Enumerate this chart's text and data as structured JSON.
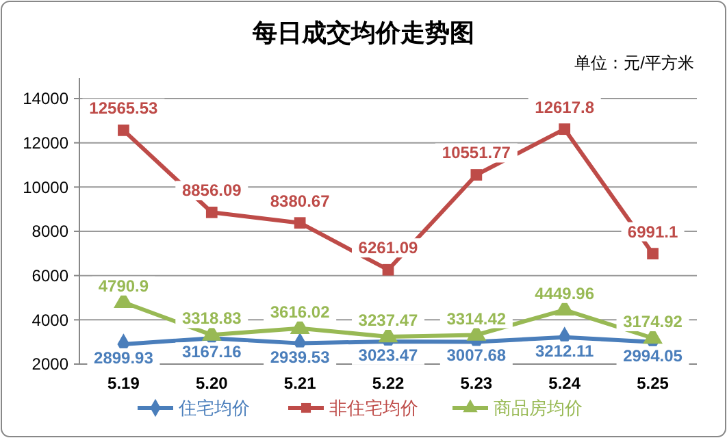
{
  "chart_data": {
    "type": "line",
    "title": "每日成交均价走势图",
    "subtitle": "单位：元/平方米",
    "categories": [
      "5.19",
      "5.20",
      "5.21",
      "5.22",
      "5.23",
      "5.24",
      "5.25"
    ],
    "series": [
      {
        "name": "住宅均价",
        "color": "#4a7ebb",
        "marker": "diamond",
        "values": [
          2899.93,
          3167.16,
          2939.53,
          3023.47,
          3007.68,
          3212.11,
          2994.05
        ]
      },
      {
        "name": "非住宅均价",
        "color": "#be4b48",
        "marker": "square",
        "values": [
          12565.53,
          8856.09,
          8380.67,
          6261.09,
          10551.77,
          12617.8,
          6991.1
        ]
      },
      {
        "name": "商品房均价",
        "color": "#98b954",
        "marker": "triangle",
        "values": [
          4790.9,
          3318.83,
          3616.02,
          3237.47,
          3314.42,
          4449.96,
          3174.92
        ]
      }
    ],
    "ylim": [
      2000,
      14000
    ],
    "yticks": [
      2000,
      4000,
      6000,
      8000,
      10000,
      12000,
      14000
    ],
    "grid": "y",
    "legend": "bottom",
    "data_labels": true,
    "line_style": "solid"
  }
}
